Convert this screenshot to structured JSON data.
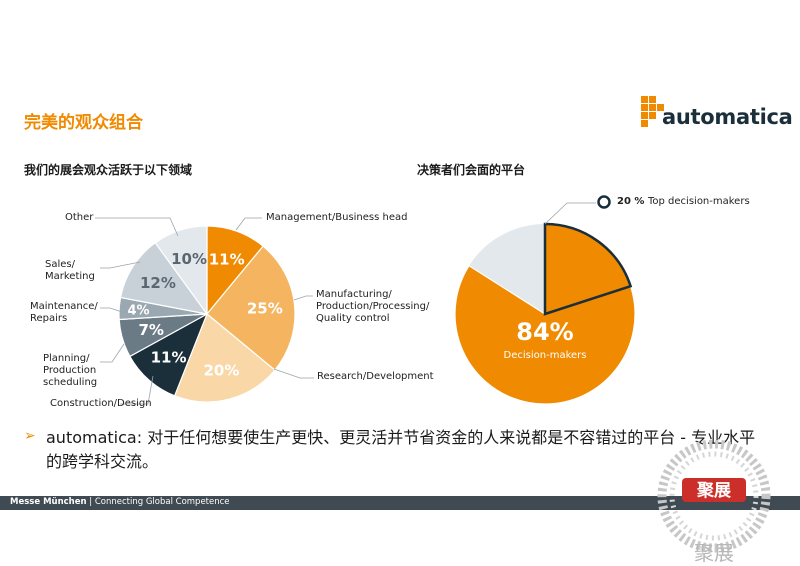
{
  "page": {
    "title": "完美的观众组合",
    "logo_text": "automatica",
    "left_heading": "我们的展会观众活跃于以下领域",
    "right_heading": "决策者们会面的平台",
    "bullet": "➢",
    "statement": "automatica: 对于任何想要使生产更快、更灵活并节省资金的人来说都是不容错过的平台 - 专业水平的跨学科交流。",
    "footer_brand": "Messe München",
    "footer_separator": "|",
    "footer_tagline": "Connecting Global Competence",
    "stamp_text": "聚展",
    "stamp_sub": "聚展"
  },
  "colors": {
    "orange": "#f08a00",
    "navy": "#1b2f3a",
    "footer": "#404a52"
  },
  "chart_data": [
    {
      "type": "pie",
      "title": "我们的展会观众活跃于以下领域",
      "slices": [
        {
          "label": "Management/Business head",
          "value": 11,
          "value_label": "11%",
          "color": "#f08a00"
        },
        {
          "label": "Manufacturing/ Production/Processing/ Quality control",
          "value": 25,
          "value_label": "25%",
          "color": "#f5b560"
        },
        {
          "label": "Research/Development",
          "value": 20,
          "value_label": "20%",
          "color": "#f9d7a7"
        },
        {
          "label": "Construction/Design",
          "value": 11,
          "value_label": "11%",
          "color": "#1b2f3a"
        },
        {
          "label": "Planning/ Production scheduling",
          "value": 7,
          "value_label": "7%",
          "color": "#6b7b86"
        },
        {
          "label": "Maintenance/ Repairs",
          "value": 4,
          "value_label": "4%",
          "color": "#9aa8b2"
        },
        {
          "label": "Sales/ Marketing",
          "value": 12,
          "value_label": "12%",
          "color": "#c8d1d8"
        },
        {
          "label": "Other",
          "value": 10,
          "value_label": "10%",
          "color": "#e3e8ec"
        }
      ]
    },
    {
      "type": "pie",
      "title": "决策者们会面的平台",
      "slices": [
        {
          "label": "Top decision-makers",
          "value": 20,
          "value_label": "20 %",
          "color": "#f08a00"
        },
        {
          "label": "Decision-makers",
          "value": 84,
          "value_label": "84%",
          "color": "#f08a00"
        },
        {
          "label": "",
          "value": 16,
          "value_label": "",
          "color": "#e3e8ec"
        }
      ]
    }
  ]
}
